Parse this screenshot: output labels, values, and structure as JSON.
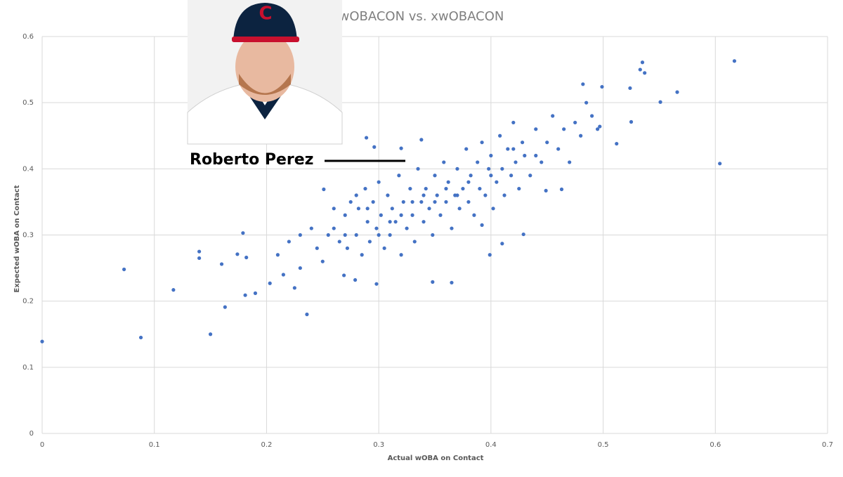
{
  "chart_data": {
    "type": "scatter",
    "title": "wOBACON vs. xwOBACON",
    "x_label": "Actual wOBA on Contact",
    "y_label": "Expected wOBA on Contact",
    "annotation": "Roberto Perez",
    "color": "#4472c4",
    "grid": true,
    "xlim": [
      0,
      0.7
    ],
    "ylim": [
      0,
      0.6
    ],
    "xticks": [
      0,
      0.1,
      0.2,
      0.3,
      0.4,
      0.5,
      0.6,
      0.7
    ],
    "yticks": [
      0,
      0.1,
      0.2,
      0.3,
      0.4,
      0.5,
      0.6
    ],
    "x": [
      0,
      0.073,
      0.088,
      0.117,
      0.14,
      0.14,
      0.15,
      0.16,
      0.163,
      0.179,
      0.174,
      0.182,
      0.181,
      0.19,
      0.203,
      0.236,
      0.251,
      0.289,
      0.296,
      0.32,
      0.338,
      0.348,
      0.365,
      0.617,
      0.604,
      0.566,
      0.551,
      0.535,
      0.537,
      0.533,
      0.524,
      0.525,
      0.512,
      0.499,
      0.497,
      0.482,
      0.392,
      0.399,
      0.429,
      0.41,
      0.463,
      0.449,
      0.279,
      0.298,
      0.269,
      0.21,
      0.22,
      0.23,
      0.24,
      0.245,
      0.25,
      0.255,
      0.26,
      0.265,
      0.27,
      0.272,
      0.275,
      0.28,
      0.282,
      0.285,
      0.288,
      0.29,
      0.292,
      0.295,
      0.298,
      0.3,
      0.302,
      0.305,
      0.308,
      0.31,
      0.312,
      0.315,
      0.318,
      0.32,
      0.322,
      0.325,
      0.328,
      0.33,
      0.332,
      0.335,
      0.338,
      0.34,
      0.342,
      0.345,
      0.348,
      0.35,
      0.352,
      0.355,
      0.358,
      0.36,
      0.362,
      0.365,
      0.368,
      0.37,
      0.372,
      0.375,
      0.378,
      0.38,
      0.382,
      0.385,
      0.388,
      0.39,
      0.392,
      0.395,
      0.398,
      0.4,
      0.402,
      0.405,
      0.408,
      0.41,
      0.412,
      0.415,
      0.418,
      0.42,
      0.422,
      0.425,
      0.428,
      0.43,
      0.435,
      0.44,
      0.445,
      0.45,
      0.455,
      0.46,
      0.465,
      0.47,
      0.475,
      0.48,
      0.485,
      0.49,
      0.495,
      0.26,
      0.28,
      0.3,
      0.32,
      0.34,
      0.36,
      0.38,
      0.33,
      0.35,
      0.37,
      0.4,
      0.42,
      0.44,
      0.31,
      0.29,
      0.27,
      0.23,
      0.215,
      0.225
    ],
    "values": [
      0.139,
      0.248,
      0.145,
      0.217,
      0.275,
      0.265,
      0.15,
      0.256,
      0.191,
      0.303,
      0.271,
      0.266,
      0.209,
      0.212,
      0.227,
      0.18,
      0.369,
      0.447,
      0.433,
      0.431,
      0.444,
      0.229,
      0.228,
      0.563,
      0.408,
      0.516,
      0.501,
      0.561,
      0.545,
      0.55,
      0.522,
      0.471,
      0.438,
      0.524,
      0.464,
      0.528,
      0.315,
      0.27,
      0.301,
      0.287,
      0.369,
      0.367,
      0.232,
      0.226,
      0.239,
      0.27,
      0.29,
      0.25,
      0.31,
      0.28,
      0.26,
      0.3,
      0.31,
      0.29,
      0.33,
      0.28,
      0.35,
      0.3,
      0.34,
      0.27,
      0.37,
      0.32,
      0.29,
      0.35,
      0.31,
      0.38,
      0.33,
      0.28,
      0.36,
      0.3,
      0.34,
      0.32,
      0.39,
      0.27,
      0.35,
      0.31,
      0.37,
      0.33,
      0.29,
      0.4,
      0.35,
      0.32,
      0.37,
      0.34,
      0.3,
      0.39,
      0.36,
      0.33,
      0.41,
      0.35,
      0.38,
      0.31,
      0.36,
      0.4,
      0.34,
      0.37,
      0.43,
      0.35,
      0.39,
      0.33,
      0.41,
      0.37,
      0.44,
      0.36,
      0.4,
      0.42,
      0.34,
      0.38,
      0.45,
      0.4,
      0.36,
      0.43,
      0.39,
      0.47,
      0.41,
      0.37,
      0.44,
      0.42,
      0.39,
      0.46,
      0.41,
      0.44,
      0.48,
      0.43,
      0.46,
      0.41,
      0.47,
      0.45,
      0.5,
      0.48,
      0.46,
      0.34,
      0.36,
      0.3,
      0.33,
      0.36,
      0.37,
      0.38,
      0.35,
      0.35,
      0.36,
      0.39,
      0.43,
      0.42,
      0.32,
      0.34,
      0.3,
      0.3,
      0.24,
      0.22
    ]
  }
}
